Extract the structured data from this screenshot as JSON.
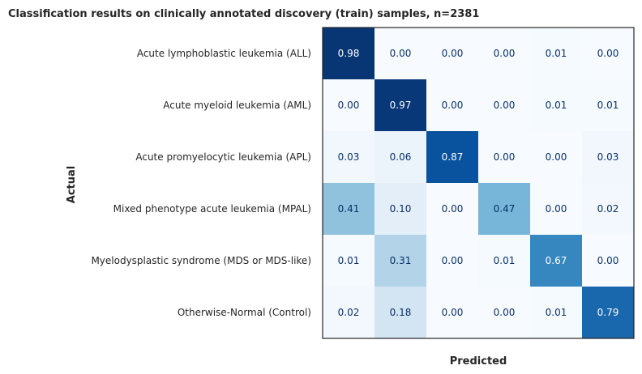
{
  "chart_data": {
    "type": "heatmap",
    "title": "Classification results on clinically annotated discovery (train) samples, n=2381",
    "xlabel": "Predicted",
    "ylabel": "Actual",
    "row_labels": [
      "Acute lymphoblastic leukemia (ALL)",
      "Acute myeloid leukemia (AML)",
      "Acute promyelocytic leukemia (APL)",
      "Mixed phenotype acute leukemia (MPAL)",
      "Myelodysplastic syndrome (MDS or MDS-like)",
      "Otherwise-Normal (Control)"
    ],
    "column_labels": [],
    "values": [
      [
        0.98,
        0.0,
        0.0,
        0.0,
        0.01,
        0.0
      ],
      [
        0.0,
        0.97,
        0.0,
        0.0,
        0.01,
        0.01
      ],
      [
        0.03,
        0.06,
        0.87,
        0.0,
        0.0,
        0.03
      ],
      [
        0.41,
        0.1,
        0.0,
        0.47,
        0.0,
        0.02
      ],
      [
        0.01,
        0.31,
        0.0,
        0.01,
        0.67,
        0.0
      ],
      [
        0.02,
        0.18,
        0.0,
        0.0,
        0.01,
        0.79
      ]
    ],
    "value_range": [
      0,
      1
    ],
    "colormap": "Blues",
    "colors": {
      "low": "#f7fbff",
      "high": "#08306b",
      "text_dark": "#08306b",
      "text_light": "#ffffff"
    },
    "grid": false,
    "legend": "none"
  }
}
